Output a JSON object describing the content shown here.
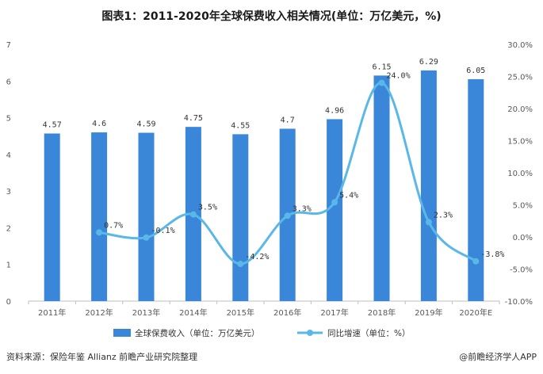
{
  "header": {
    "title": "图表1：2011-2020年全球保费收入相关情况(单位：万亿美元，%)"
  },
  "footer": {
    "source": "资料来源：保险年鉴 Allianz 前瞻产业研究院整理",
    "brand": "@前瞻经济学人APP"
  },
  "colors": {
    "bar": "#3a86d8",
    "line": "#5ab8e8",
    "axis": "#bfbfbf",
    "text": "#595959"
  },
  "chart_data": {
    "type": "bar",
    "categories": [
      "2011年",
      "2012年",
      "2013年",
      "2014年",
      "2015年",
      "2016年",
      "2017年",
      "2018年",
      "2019年",
      "2020年E"
    ],
    "series": [
      {
        "name": "全球保费收入（单位：万亿美元）",
        "type": "bar",
        "axis": "left",
        "values": [
          4.57,
          4.6,
          4.59,
          4.75,
          4.55,
          4.7,
          4.96,
          6.15,
          6.29,
          6.05
        ],
        "labels": [
          "4.57",
          "4.6",
          "4.59",
          "4.75",
          "4.55",
          "4.7",
          "4.96",
          "6.15",
          "6.29",
          "6.05"
        ]
      },
      {
        "name": "同比增速（单位：%）",
        "type": "line",
        "axis": "right",
        "values": [
          null,
          0.7,
          -0.1,
          3.5,
          -4.2,
          3.3,
          5.4,
          24.0,
          2.3,
          -3.8
        ],
        "labels": [
          "",
          "0.7%",
          "-0.1%",
          "3.5%",
          "-4.2%",
          "3.3%",
          "5.4%",
          "24.0%",
          "2.3%",
          "-3.8%"
        ]
      }
    ],
    "y_left": {
      "min": 0,
      "max": 7,
      "ticks": [
        "0",
        "1",
        "2",
        "3",
        "4",
        "5",
        "6",
        "7"
      ]
    },
    "y_right": {
      "min": -10,
      "max": 30,
      "ticks": [
        "-10.0%",
        "-5.0%",
        "0.0%",
        "5.0%",
        "10.0%",
        "15.0%",
        "20.0%",
        "25.0%",
        "30.0%"
      ]
    },
    "legend_position": "bottom",
    "grid": false
  }
}
